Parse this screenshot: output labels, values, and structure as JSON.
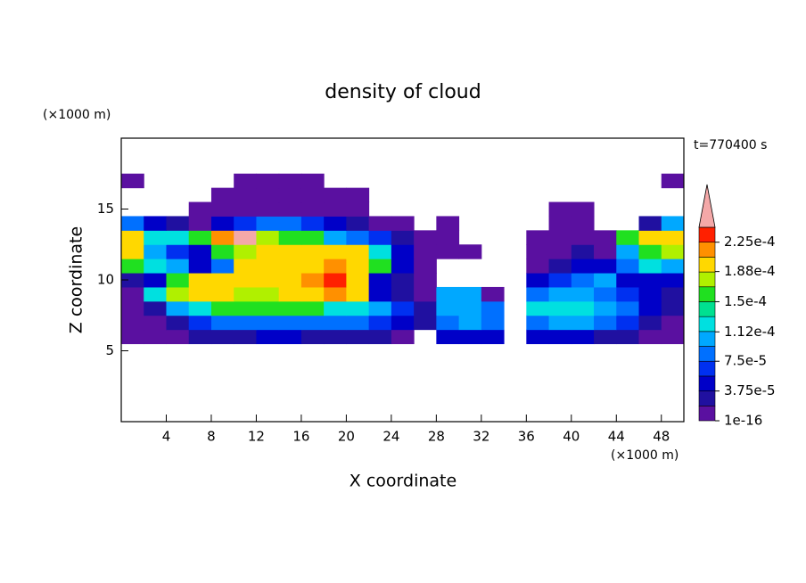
{
  "chart_data": {
    "type": "heatmap",
    "title": "density of cloud",
    "subtitle": "t=770400 s",
    "x_label": "X coordinate",
    "y_label": "Z coordinate",
    "x_unit": "(×1000 m)",
    "y_unit": "(×1000 m)",
    "xlim": [
      0,
      50
    ],
    "ylim": [
      0,
      20
    ],
    "xticks": [
      4,
      8,
      12,
      16,
      20,
      24,
      28,
      32,
      36,
      40,
      44,
      48
    ],
    "yticks": [
      5,
      10,
      15
    ],
    "x": [
      1,
      3,
      5,
      7,
      9,
      11,
      13,
      15,
      17,
      19,
      21,
      23,
      25,
      27,
      29,
      31,
      33,
      35,
      37,
      39,
      41,
      43,
      45,
      47,
      49
    ],
    "y": [
      6,
      7,
      8,
      9,
      10,
      11,
      12,
      13,
      14,
      15,
      16,
      17
    ],
    "values": [
      [
        1e-05,
        1e-05,
        1e-05,
        3e-05,
        3e-05,
        3e-05,
        5e-05,
        5e-05,
        3e-05,
        3e-05,
        3e-05,
        3e-05,
        1e-05,
        null,
        5e-05,
        5e-05,
        5e-05,
        null,
        5e-05,
        5e-05,
        5e-05,
        3e-05,
        3e-05,
        1e-05,
        1e-05
      ],
      [
        1e-05,
        1e-05,
        3e-05,
        7e-05,
        9e-05,
        9e-05,
        9e-05,
        9e-05,
        9e-05,
        9e-05,
        9e-05,
        7e-05,
        5e-05,
        3e-05,
        9e-05,
        0.00011,
        9e-05,
        null,
        9e-05,
        0.00011,
        0.00011,
        9e-05,
        7e-05,
        3e-05,
        1e-05
      ],
      [
        1e-05,
        3e-05,
        0.00011,
        0.00013,
        0.00015,
        0.00015,
        0.00015,
        0.00015,
        0.00015,
        0.00013,
        0.00013,
        0.00011,
        7e-05,
        3e-05,
        0.00011,
        0.00011,
        9e-05,
        null,
        0.00013,
        0.00013,
        0.00013,
        0.00011,
        9e-05,
        5e-05,
        3e-05
      ],
      [
        1e-05,
        0.00013,
        0.00017,
        0.0002,
        0.00019,
        0.00017,
        0.00017,
        0.00019,
        0.00019,
        0.00022,
        0.00019,
        5e-05,
        3e-05,
        1e-05,
        0.00011,
        0.00011,
        1e-05,
        null,
        9e-05,
        0.00011,
        0.00011,
        9e-05,
        7e-05,
        5e-05,
        3e-05
      ],
      [
        3e-05,
        5e-05,
        0.00015,
        0.00019,
        0.0002,
        0.00019,
        0.00019,
        0.0002,
        0.00022,
        0.00024,
        0.0002,
        5e-05,
        3e-05,
        1e-05,
        null,
        null,
        null,
        null,
        5e-05,
        7e-05,
        9e-05,
        0.00011,
        5e-05,
        5e-05,
        5e-05
      ],
      [
        0.00015,
        0.00013,
        0.00011,
        5e-05,
        9e-05,
        0.00019,
        0.0002,
        0.00019,
        0.0002,
        0.00022,
        0.00019,
        0.00015,
        5e-05,
        1e-05,
        null,
        null,
        null,
        null,
        1e-05,
        3e-05,
        5e-05,
        5e-05,
        9e-05,
        0.00013,
        0.00011
      ],
      [
        0.00019,
        0.00011,
        7e-05,
        5e-05,
        0.00015,
        0.00017,
        0.00019,
        0.00019,
        0.0002,
        0.0002,
        0.0002,
        0.00013,
        5e-05,
        1e-05,
        1e-05,
        1e-05,
        null,
        null,
        1e-05,
        1e-05,
        3e-05,
        1e-05,
        0.00011,
        0.00015,
        0.00017
      ],
      [
        0.0002,
        0.00013,
        0.00013,
        0.00015,
        0.00022,
        0.00025,
        0.00017,
        0.00015,
        0.00015,
        0.00011,
        9e-05,
        7e-05,
        3e-05,
        1e-05,
        1e-05,
        null,
        null,
        null,
        1e-05,
        1e-05,
        1e-05,
        1e-05,
        0.00015,
        0.00019,
        0.0002
      ],
      [
        9e-05,
        5e-05,
        3e-05,
        1e-05,
        5e-05,
        7e-05,
        9e-05,
        9e-05,
        7e-05,
        5e-05,
        3e-05,
        1e-05,
        1e-05,
        null,
        1e-05,
        null,
        null,
        null,
        null,
        1e-05,
        1e-05,
        null,
        null,
        3e-05,
        0.00011
      ],
      [
        null,
        null,
        null,
        1e-05,
        1e-05,
        1e-05,
        1e-05,
        1e-05,
        1e-05,
        1e-05,
        1e-05,
        null,
        null,
        null,
        null,
        null,
        null,
        null,
        null,
        1e-05,
        1e-05,
        null,
        null,
        null,
        null
      ],
      [
        null,
        null,
        null,
        null,
        1e-05,
        1e-05,
        1e-05,
        1e-05,
        1e-05,
        1e-05,
        1e-05,
        null,
        null,
        null,
        null,
        null,
        null,
        null,
        null,
        null,
        null,
        null,
        null,
        null,
        null
      ],
      [
        1e-05,
        null,
        null,
        null,
        null,
        1e-05,
        1e-05,
        1e-05,
        1e-05,
        null,
        null,
        null,
        null,
        null,
        null,
        null,
        null,
        null,
        null,
        null,
        null,
        null,
        null,
        null,
        1e-05
      ]
    ],
    "levels": [
      1e-16,
      1.875e-05,
      3.75e-05,
      5.625e-05,
      7.5e-05,
      9.375e-05,
      0.0001125,
      0.00013125,
      0.00015,
      0.00016875,
      0.0001875,
      0.00020625,
      0.000225,
      0.00024375
    ],
    "colors": [
      "#5a10a0",
      "#2010a0",
      "#0000c8",
      "#0030f0",
      "#0070ff",
      "#00a8ff",
      "#00e0e0",
      "#00e090",
      "#20e020",
      "#b0f000",
      "#ffd800",
      "#ff9000",
      "#ff2000"
    ],
    "over_color": "#f4a8a8",
    "colorbar_ticks": [
      1e-16,
      {
        "value": 3.75e-05,
        "label": "3.75e-5"
      },
      {
        "value": 7.5e-05,
        "label": "7.5e-5"
      },
      {
        "value": 0.000112,
        "label": "1.12e-4"
      },
      {
        "value": 0.00015,
        "label": "1.5e-4"
      },
      {
        "value": 0.000188,
        "label": "1.88e-4"
      },
      {
        "value": 0.000225,
        "label": "2.25e-4"
      }
    ]
  }
}
